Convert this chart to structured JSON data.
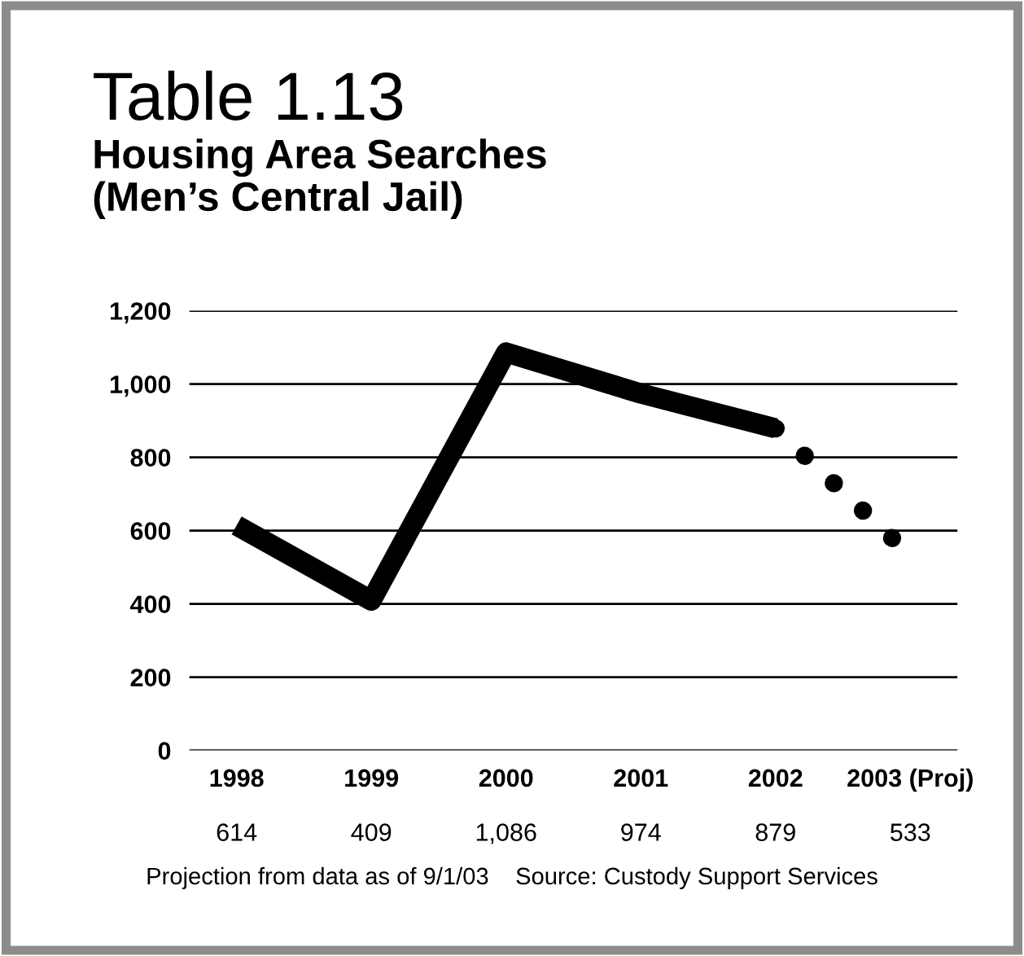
{
  "chart_data": {
    "type": "line",
    "title": "Table 1.13",
    "subtitle": "Housing Area Searches\n(Men’s Central Jail)",
    "categories": [
      "1998",
      "1999",
      "2000",
      "2001",
      "2002",
      "2003 (Proj)"
    ],
    "series": [
      {
        "color": "#000000",
        "line_style": "solid",
        "values": [
          614,
          409,
          1086,
          974,
          879,
          null
        ]
      },
      {
        "color": "#000000",
        "line_style": "dotted",
        "values": [
          null,
          null,
          null,
          null,
          879,
          533
        ]
      }
    ],
    "value_labels": [
      "614",
      "409",
      "1,086",
      "974",
      "879",
      "533"
    ],
    "ylim": [
      0,
      1200
    ],
    "yticks": [
      0,
      200,
      400,
      600,
      800,
      {
        "value": 1000,
        "label": "1,000"
      },
      {
        "value": 1200,
        "label": "1,200"
      }
    ],
    "grid": "y",
    "marker": "none",
    "annotations": [
      "Projection from data as of 9/1/03    Source: Custody Support Services"
    ]
  }
}
